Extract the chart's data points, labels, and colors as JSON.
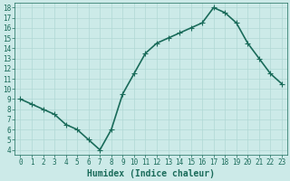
{
  "x": [
    0,
    1,
    2,
    3,
    4,
    5,
    6,
    7,
    8,
    9,
    10,
    11,
    12,
    13,
    14,
    15,
    16,
    17,
    18,
    19,
    20,
    21,
    22,
    23
  ],
  "y": [
    9,
    8.5,
    8,
    7.5,
    6.5,
    6,
    5,
    4,
    6,
    9.5,
    11.5,
    13.5,
    14.5,
    15,
    15.5,
    16,
    16.5,
    18,
    17.5,
    16.5,
    14.5,
    13,
    11.5,
    10.5
  ],
  "line_color": "#1a6b5a",
  "marker": "+",
  "marker_size": 4,
  "marker_linewidth": 0.8,
  "bg_color": "#cceae8",
  "grid_color": "#b0d8d4",
  "xlabel": "Humidex (Indice chaleur)",
  "xlim": [
    -0.5,
    23.5
  ],
  "ylim": [
    3.5,
    18.5
  ],
  "yticks": [
    4,
    5,
    6,
    7,
    8,
    9,
    10,
    11,
    12,
    13,
    14,
    15,
    16,
    17,
    18
  ],
  "xticks": [
    0,
    1,
    2,
    3,
    4,
    5,
    6,
    7,
    8,
    9,
    10,
    11,
    12,
    13,
    14,
    15,
    16,
    17,
    18,
    19,
    20,
    21,
    22,
    23
  ],
  "tick_color": "#1a6b5a",
  "label_color": "#1a6b5a",
  "font_family": "monospace",
  "linewidth": 1.2,
  "xlabel_fontsize": 7,
  "tick_fontsize": 5.5
}
